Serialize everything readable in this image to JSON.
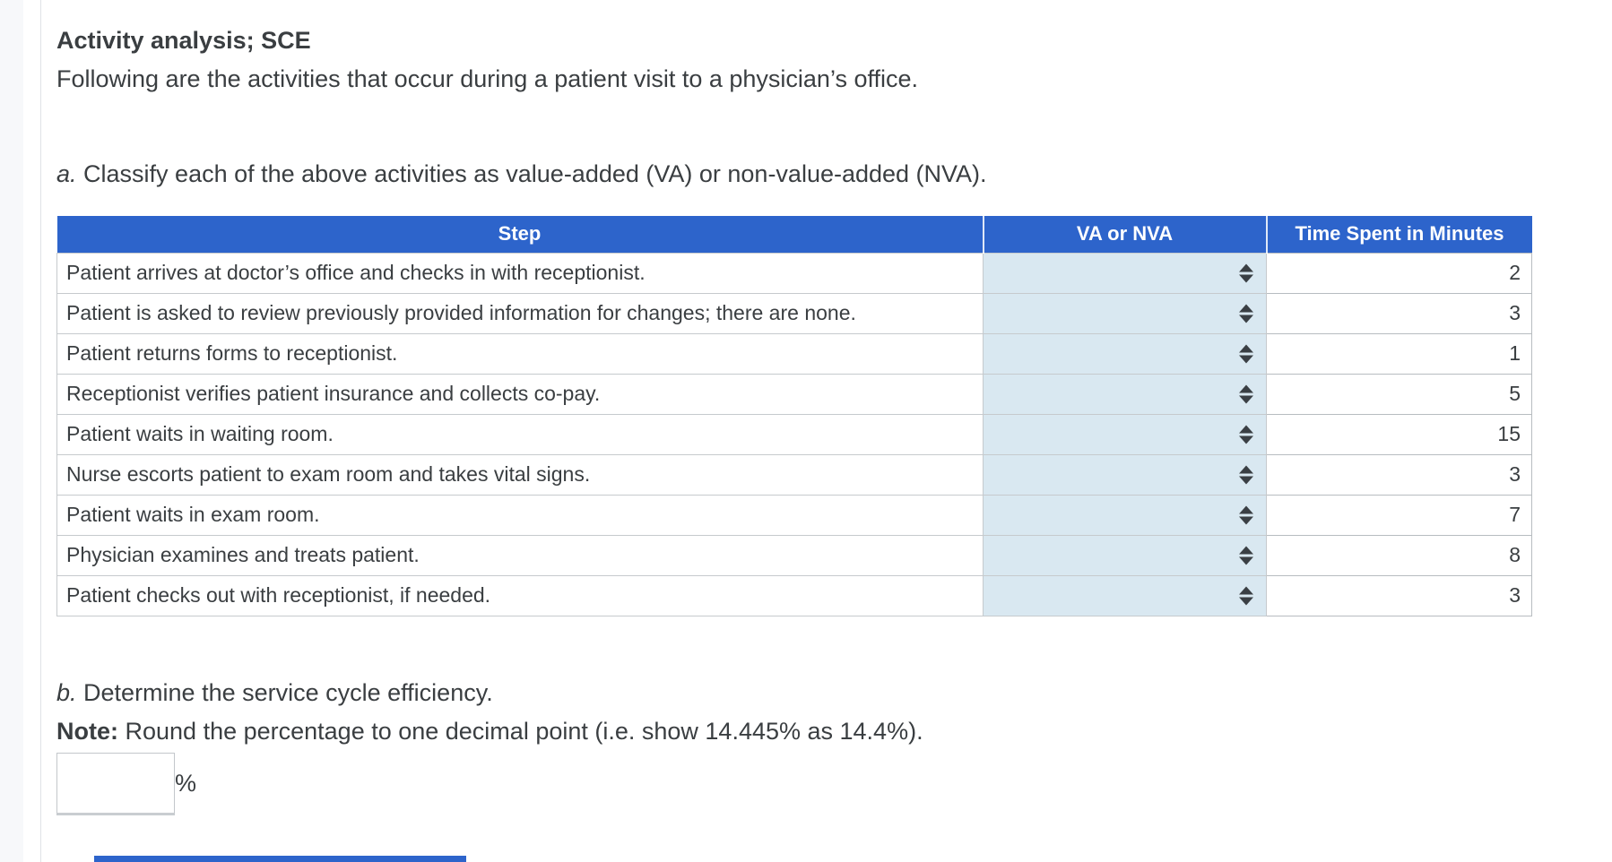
{
  "page": {
    "title": "Activity analysis; SCE",
    "intro": "Following are the activities that occur during a patient visit to a physician’s office.",
    "part_a": {
      "label": "a.",
      "text": " Classify each of the above activities as value-added (VA) or non-value-added (NVA)."
    },
    "part_b": {
      "label": "b.",
      "text": " Determine the service cycle efficiency."
    },
    "note": {
      "label": "Note:",
      "text": " Round the percentage to one decimal point (i.e. show 14.445% as 14.4%)."
    },
    "answer_input": {
      "value": "",
      "placeholder": ""
    },
    "percent_sign": "%"
  },
  "table": {
    "headers": [
      "Step",
      "VA or NVA",
      "Time Spent in Minutes"
    ],
    "rows": [
      {
        "step": "Patient arrives at doctor’s office and checks in with receptionist.",
        "va_nva": "",
        "minutes": "2"
      },
      {
        "step": "Patient is asked to review previously provided information for changes; there are none.",
        "va_nva": "",
        "minutes": "3"
      },
      {
        "step": "Patient returns forms to receptionist.",
        "va_nva": "",
        "minutes": "1"
      },
      {
        "step": "Receptionist verifies patient insurance and collects co-pay.",
        "va_nva": "",
        "minutes": "5"
      },
      {
        "step": "Patient waits in waiting room.",
        "va_nva": "",
        "minutes": "15"
      },
      {
        "step": "Nurse escorts patient to exam room and takes vital signs.",
        "va_nva": "",
        "minutes": "3"
      },
      {
        "step": "Patient waits in exam room.",
        "va_nva": "",
        "minutes": "7"
      },
      {
        "step": "Physician examines and treats patient.",
        "va_nva": "",
        "minutes": "8"
      },
      {
        "step": "Patient checks out with receptionist, if needed.",
        "va_nva": "",
        "minutes": "3"
      }
    ]
  },
  "icons": {
    "dropdown_spinner": "updown-arrows"
  },
  "colors": {
    "header_blue": "#2d64cb",
    "dropdown_cell_blue": "#d9e8f1",
    "grid_border": "#c6cacd"
  }
}
